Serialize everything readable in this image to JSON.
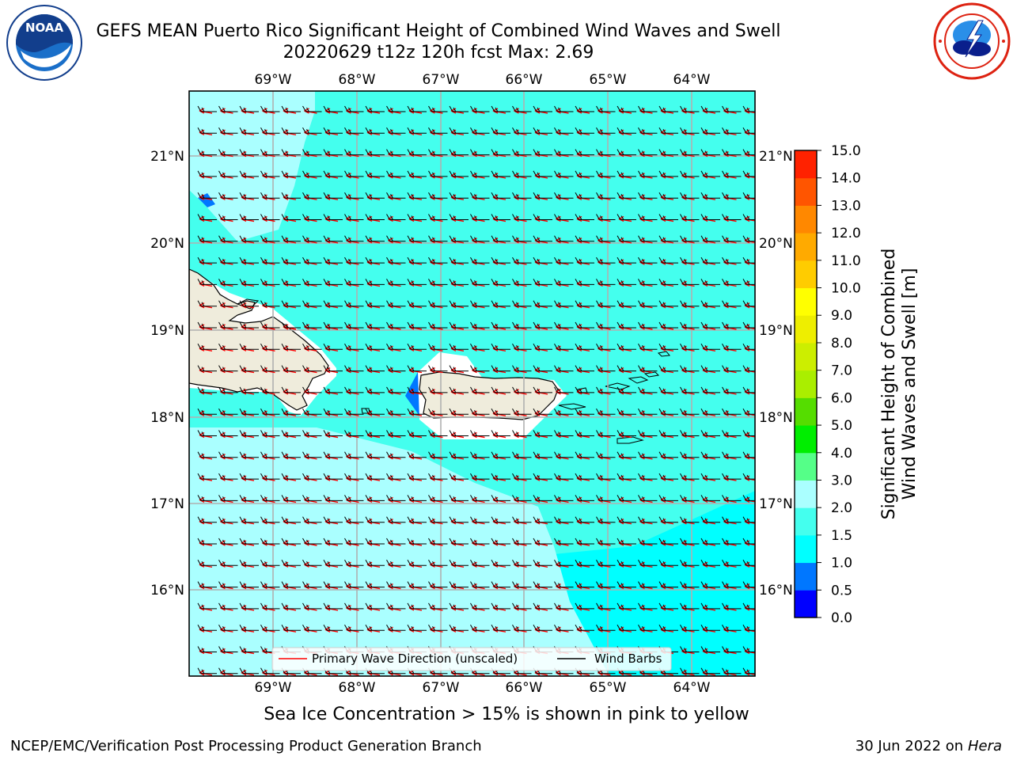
{
  "title": {
    "line1": "GEFS MEAN Puerto Rico Significant Height of Combined Wind Waves and Swell",
    "line2": "20220629 t12z 120h fcst   Max: 2.69"
  },
  "axes": {
    "lon_labels": [
      "69°W",
      "68°W",
      "67°W",
      "66°W",
      "65°W",
      "64°W"
    ],
    "lat_labels": [
      "21°N",
      "20°N",
      "19°N",
      "18°N",
      "17°N",
      "16°N"
    ]
  },
  "legend": {
    "wave_label": "Primary Wave Direction (unscaled)",
    "barb_label": "Wind Barbs",
    "wave_color": "#ff0000",
    "barb_color": "#000000"
  },
  "colorbar": {
    "title_line1": "Significant Height of Combined",
    "title_line2": "Wind Waves and Swell [m]",
    "ticks": [
      "0.0",
      "0.5",
      "1.0",
      "1.5",
      "2.0",
      "3.0",
      "4.0",
      "5.0",
      "6.0",
      "7.0",
      "8.0",
      "9.0",
      "10.0",
      "11.0",
      "12.0",
      "13.0",
      "14.0",
      "15.0"
    ],
    "colors": [
      "#0000ff",
      "#0077ff",
      "#00ffff",
      "#44ffee",
      "#aaffff",
      "#55ff88",
      "#00ee00",
      "#55dd00",
      "#aaee00",
      "#ccee00",
      "#eeee00",
      "#ffff00",
      "#ffcc00",
      "#ffaa00",
      "#ff8800",
      "#ff5500",
      "#ff2200"
    ]
  },
  "note": "Sea Ice Concentration > 15% is shown in pink to yellow",
  "footer": {
    "left": "NCEP/EMC/Verification Post Processing Product Generation Branch",
    "date": "30 Jun 2022 on",
    "host": "Hera"
  },
  "colors": {
    "land": "#efecdc",
    "sea_low": "#aaffff",
    "sea_mid": "#44ffee",
    "sea_high": "#00ffff",
    "sea_deep": "#0077ff"
  }
}
